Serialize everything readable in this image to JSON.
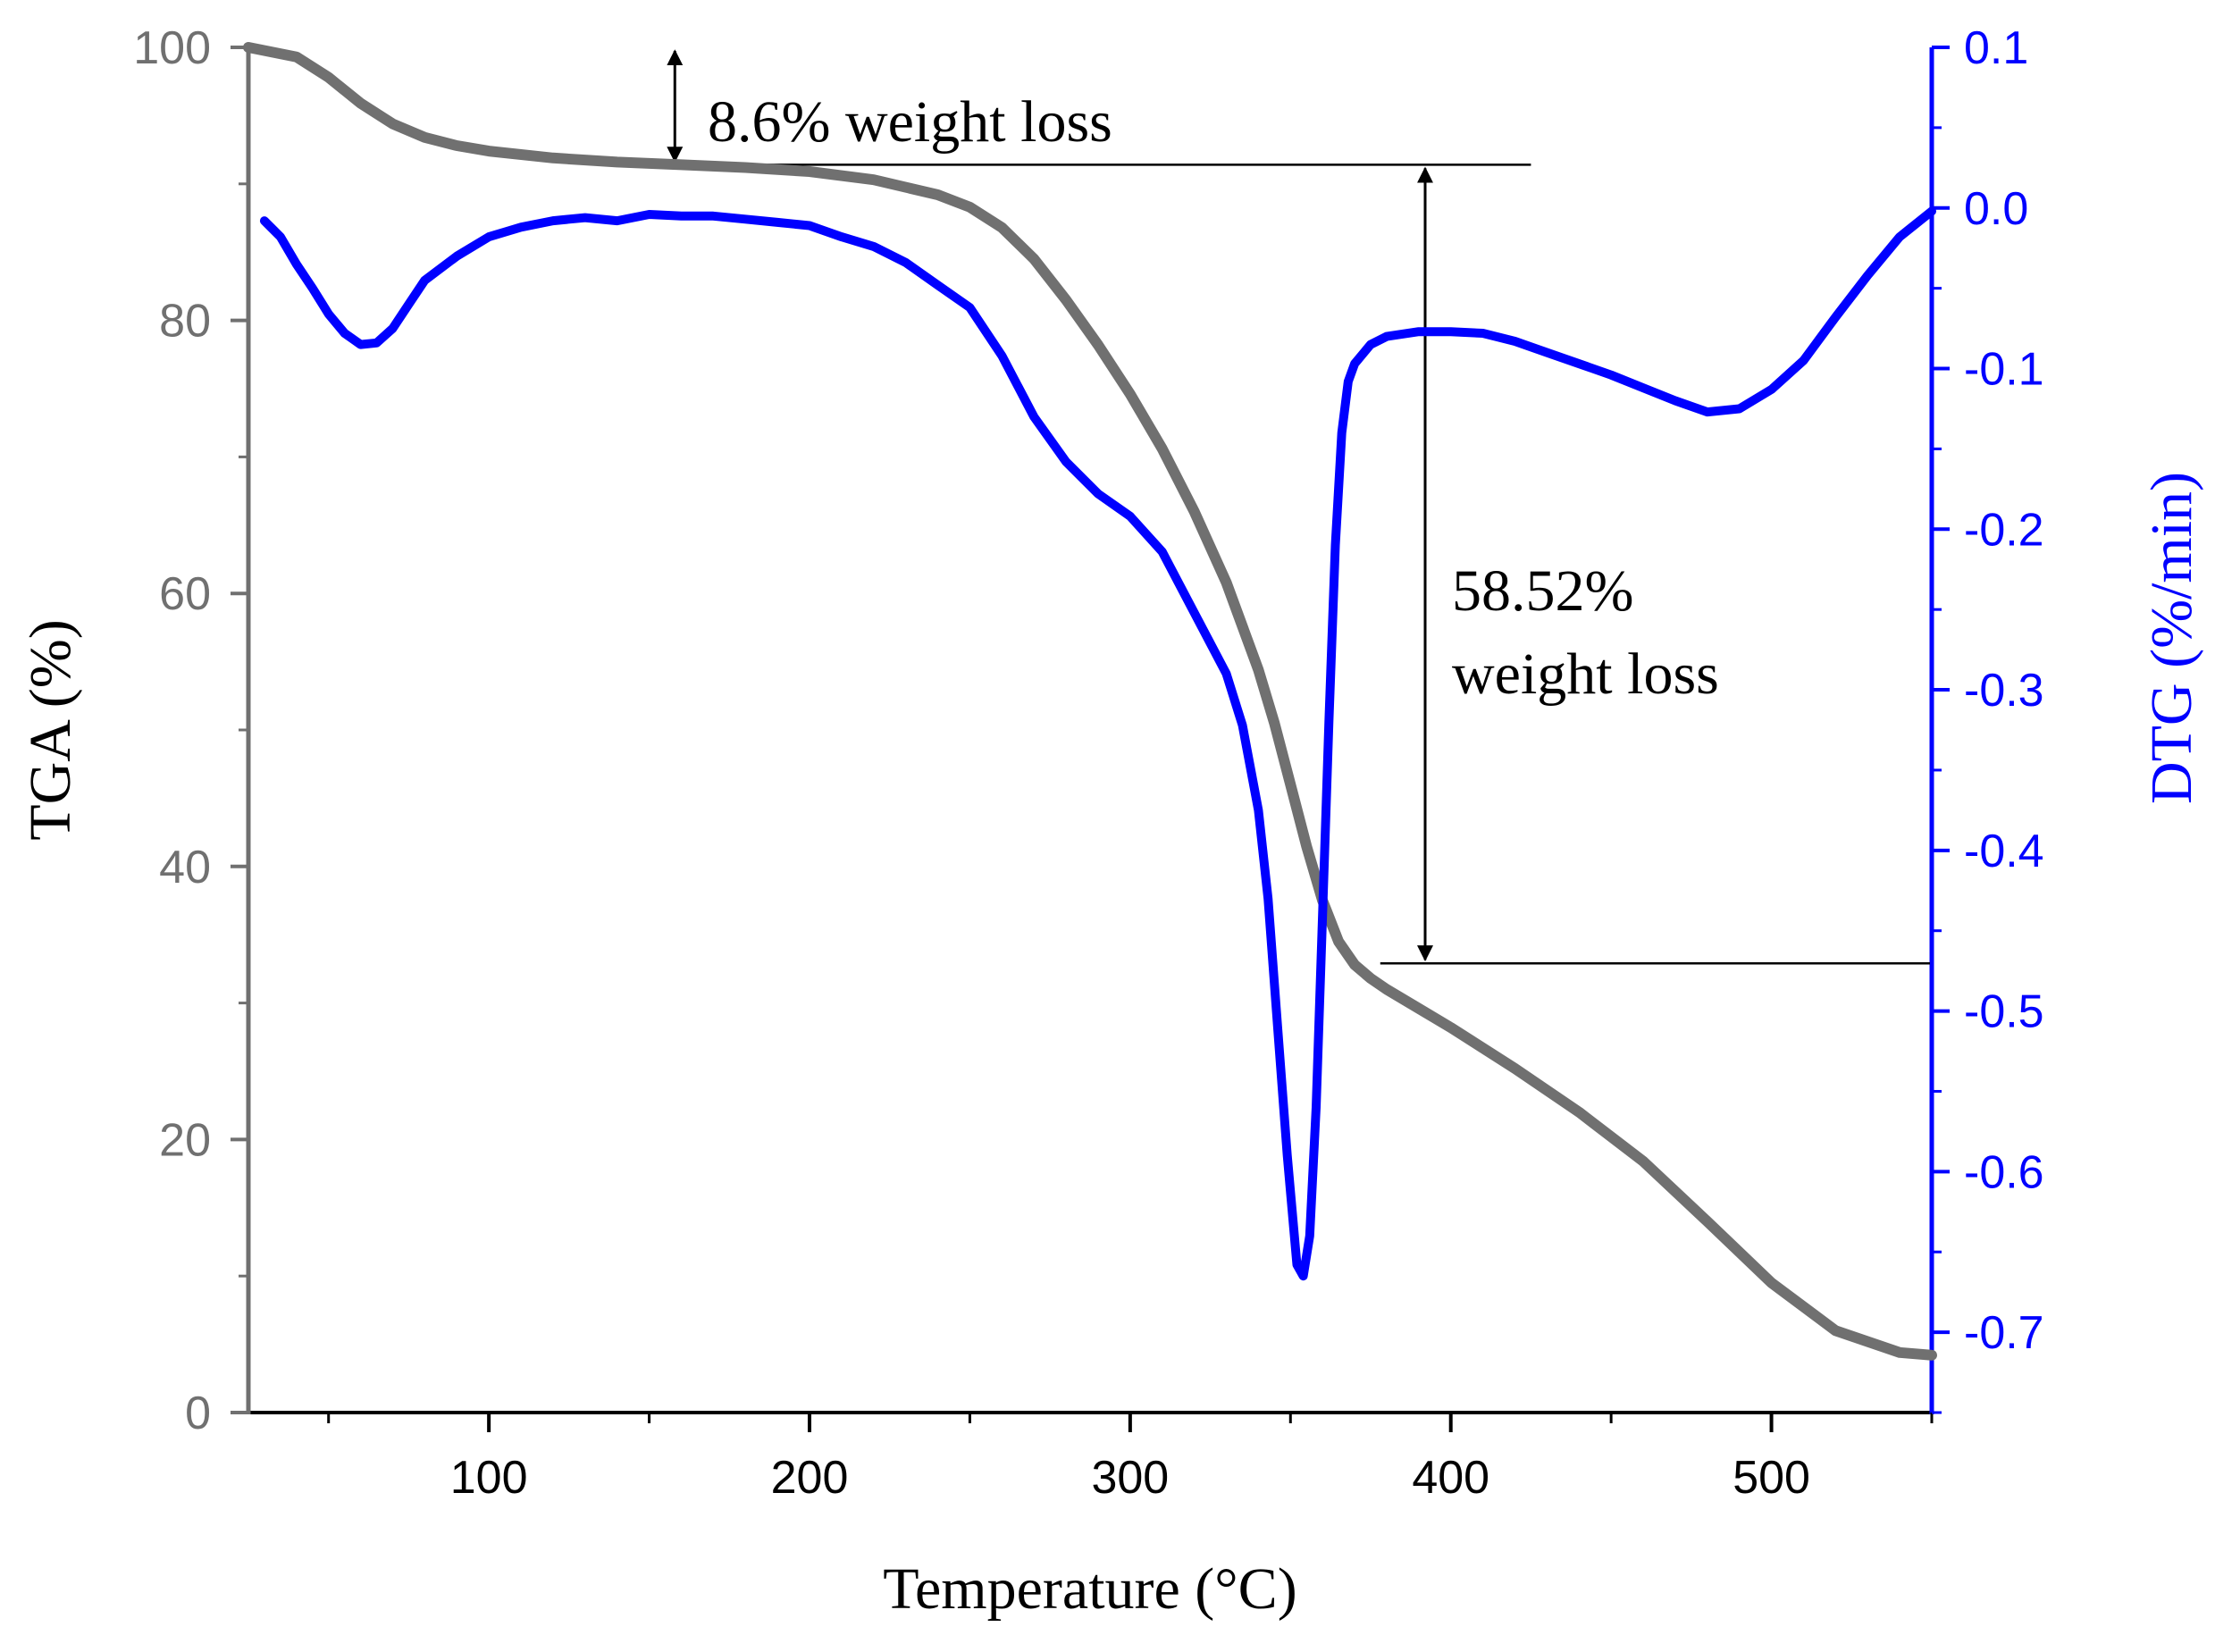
{
  "chart_data": {
    "type": "line",
    "title": "",
    "xlabel": "Temperature (°C)",
    "ylabel_left": "TGA (%)",
    "ylabel_right": "DTG (%/min)",
    "xlim": [
      25,
      550
    ],
    "ylim_left": [
      0,
      100
    ],
    "ylim_right": [
      -0.75,
      0.1
    ],
    "x_ticks": [
      100,
      200,
      300,
      400,
      500
    ],
    "x_tick_labels": [
      "100",
      "200",
      "300",
      "400",
      "500"
    ],
    "y_left_ticks": [
      0,
      20,
      40,
      60,
      80,
      100
    ],
    "y_left_tick_labels": [
      "0",
      "20",
      "40",
      "60",
      "80",
      "100"
    ],
    "y_right_ticks": [
      0.1,
      0.0,
      -0.1,
      -0.2,
      -0.3,
      -0.4,
      -0.5,
      -0.6,
      -0.7
    ],
    "y_right_tick_labels": [
      "0.1",
      "0.0",
      "-0.1",
      "-0.2",
      "-0.3",
      "-0.4",
      "-0.5",
      "-0.6",
      "-0.7"
    ],
    "colors": {
      "tga": "#707070",
      "dtg": "#0000ff",
      "axis_left": "#707070",
      "axis_right": "#0000ff",
      "annotation": "#000000"
    },
    "series": [
      {
        "name": "TGA",
        "axis": "left",
        "x": [
          25,
          40,
          50,
          60,
          70,
          80,
          90,
          100,
          120,
          140,
          160,
          180,
          200,
          220,
          240,
          250,
          260,
          270,
          280,
          290,
          300,
          310,
          320,
          330,
          340,
          345,
          350,
          355,
          360,
          365,
          370,
          375,
          380,
          390,
          400,
          420,
          440,
          460,
          480,
          500,
          520,
          540,
          550
        ],
        "values": [
          100,
          99.3,
          97.8,
          95.9,
          94.4,
          93.4,
          92.8,
          92.4,
          91.9,
          91.6,
          91.4,
          91.2,
          90.9,
          90.3,
          89.2,
          88.3,
          86.8,
          84.5,
          81.5,
          78.2,
          74.6,
          70.6,
          66.0,
          60.8,
          54.4,
          50.5,
          46.0,
          41.5,
          37.5,
          34.5,
          32.8,
          31.8,
          31.0,
          29.6,
          28.2,
          25.2,
          22.0,
          18.4,
          14.0,
          9.5,
          6.0,
          4.4,
          4.2
        ]
      },
      {
        "name": "DTG",
        "axis": "right",
        "x": [
          30,
          35,
          40,
          45,
          50,
          55,
          60,
          65,
          70,
          75,
          80,
          90,
          100,
          110,
          120,
          130,
          140,
          150,
          160,
          170,
          180,
          190,
          200,
          210,
          220,
          230,
          240,
          250,
          260,
          270,
          280,
          290,
          300,
          310,
          320,
          330,
          335,
          340,
          343,
          346,
          349,
          352,
          354,
          356,
          358,
          360,
          362,
          364,
          366,
          368,
          370,
          375,
          380,
          390,
          400,
          410,
          420,
          430,
          440,
          450,
          460,
          470,
          480,
          490,
          500,
          510,
          520,
          530,
          540,
          550
        ],
        "values": [
          -0.008,
          -0.018,
          -0.035,
          -0.05,
          -0.066,
          -0.078,
          -0.085,
          -0.084,
          -0.075,
          -0.06,
          -0.045,
          -0.03,
          -0.018,
          -0.012,
          -0.008,
          -0.006,
          -0.008,
          -0.004,
          -0.005,
          -0.005,
          -0.007,
          -0.009,
          -0.011,
          -0.018,
          -0.024,
          -0.034,
          -0.048,
          -0.062,
          -0.092,
          -0.13,
          -0.158,
          -0.178,
          -0.192,
          -0.214,
          -0.252,
          -0.29,
          -0.322,
          -0.375,
          -0.43,
          -0.51,
          -0.59,
          -0.658,
          -0.665,
          -0.64,
          -0.56,
          -0.44,
          -0.32,
          -0.21,
          -0.14,
          -0.108,
          -0.097,
          -0.085,
          -0.08,
          -0.077,
          -0.077,
          -0.078,
          -0.083,
          -0.09,
          -0.097,
          -0.104,
          -0.112,
          -0.12,
          -0.127,
          -0.125,
          -0.113,
          -0.095,
          -0.068,
          -0.042,
          -0.018,
          -0.002
        ]
      }
    ],
    "annotations": [
      {
        "text": "8.6% weight loss",
        "from_y": 100,
        "to_y": 91.4,
        "at_x": 158
      },
      {
        "text_line1": "58.52%",
        "text_line2": "weight loss",
        "from_y": 91.4,
        "to_y": 32.9,
        "at_x": 392
      }
    ]
  }
}
